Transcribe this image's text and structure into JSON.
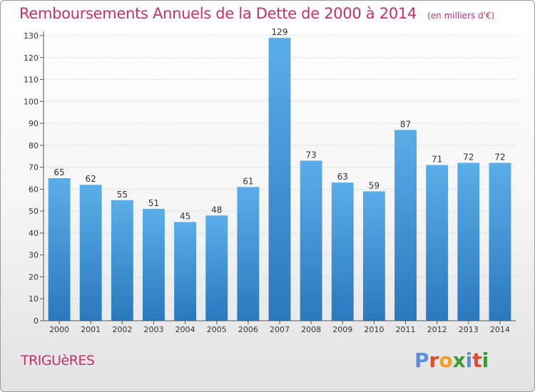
{
  "title": "Remboursements Annuels de la Dette de 2000 à 2014",
  "subtitle": "(en milliers d'€)",
  "location": "TRIGUèRES",
  "logo": {
    "text": "Proxiti",
    "letters": [
      {
        "char": "P",
        "color": "#5b8fd6"
      },
      {
        "char": "r",
        "color": "#e04a2a"
      },
      {
        "char": "o",
        "color": "#f0a020"
      },
      {
        "char": "x",
        "color": "#3a9a3a"
      },
      {
        "char": "i",
        "color": "#5b8fd6"
      },
      {
        "char": "t",
        "color": "#e04a2a"
      },
      {
        "char": "i",
        "color": "#3a9a3a"
      }
    ]
  },
  "chart_data": {
    "type": "bar",
    "title": "Remboursements Annuels de la Dette de 2000 à 2014",
    "subtitle": "(en milliers d'€)",
    "categories": [
      "2000",
      "2001",
      "2002",
      "2003",
      "2004",
      "2005",
      "2006",
      "2007",
      "2008",
      "2009",
      "2010",
      "2011",
      "2012",
      "2013",
      "2014"
    ],
    "values": [
      65,
      62,
      55,
      51,
      45,
      48,
      61,
      129,
      73,
      63,
      59,
      87,
      71,
      72,
      72
    ],
    "ylim": [
      0,
      130
    ],
    "yticks": [
      0,
      10,
      20,
      30,
      40,
      50,
      60,
      70,
      80,
      90,
      100,
      110,
      120,
      130
    ],
    "grid": true,
    "bar_color_light": "#5aaee8",
    "bar_color_dark": "#2a78be"
  }
}
